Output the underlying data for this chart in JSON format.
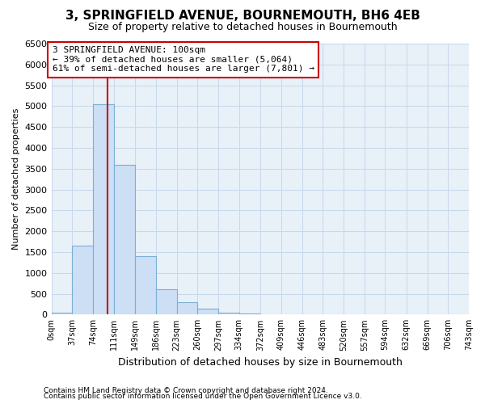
{
  "title": "3, SPRINGFIELD AVENUE, BOURNEMOUTH, BH6 4EB",
  "subtitle": "Size of property relative to detached houses in Bournemouth",
  "xlabel": "Distribution of detached houses by size in Bournemouth",
  "ylabel": "Number of detached properties",
  "bar_color": "#ccdff5",
  "bar_edge_color": "#7aafd4",
  "bar_heights": [
    50,
    1650,
    5050,
    3600,
    1400,
    600,
    300,
    150,
    50,
    20,
    0,
    0,
    0,
    0,
    0,
    0,
    0,
    0,
    0,
    0
  ],
  "bin_edges": [
    0,
    37,
    74,
    111,
    149,
    186,
    223,
    260,
    297,
    334,
    372,
    409,
    446,
    483,
    520,
    557,
    594,
    632,
    669,
    706,
    743
  ],
  "tick_labels": [
    "0sqm",
    "37sqm",
    "74sqm",
    "111sqm",
    "149sqm",
    "186sqm",
    "223sqm",
    "260sqm",
    "297sqm",
    "334sqm",
    "372sqm",
    "409sqm",
    "446sqm",
    "483sqm",
    "520sqm",
    "557sqm",
    "594sqm",
    "632sqm",
    "669sqm",
    "706sqm",
    "743sqm"
  ],
  "vline_x": 100,
  "vline_color": "#cc0000",
  "ylim": [
    0,
    6500
  ],
  "yticks": [
    0,
    500,
    1000,
    1500,
    2000,
    2500,
    3000,
    3500,
    4000,
    4500,
    5000,
    5500,
    6000,
    6500
  ],
  "annotation_text": "3 SPRINGFIELD AVENUE: 100sqm\n← 39% of detached houses are smaller (5,064)\n61% of semi-detached houses are larger (7,801) →",
  "annotation_box_color": "#ffffff",
  "annotation_box_edge_color": "#cc0000",
  "footer1": "Contains HM Land Registry data © Crown copyright and database right 2024.",
  "footer2": "Contains public sector information licensed under the Open Government Licence v3.0.",
  "grid_color": "#c8d8eb",
  "background_color": "#e8f0f8"
}
